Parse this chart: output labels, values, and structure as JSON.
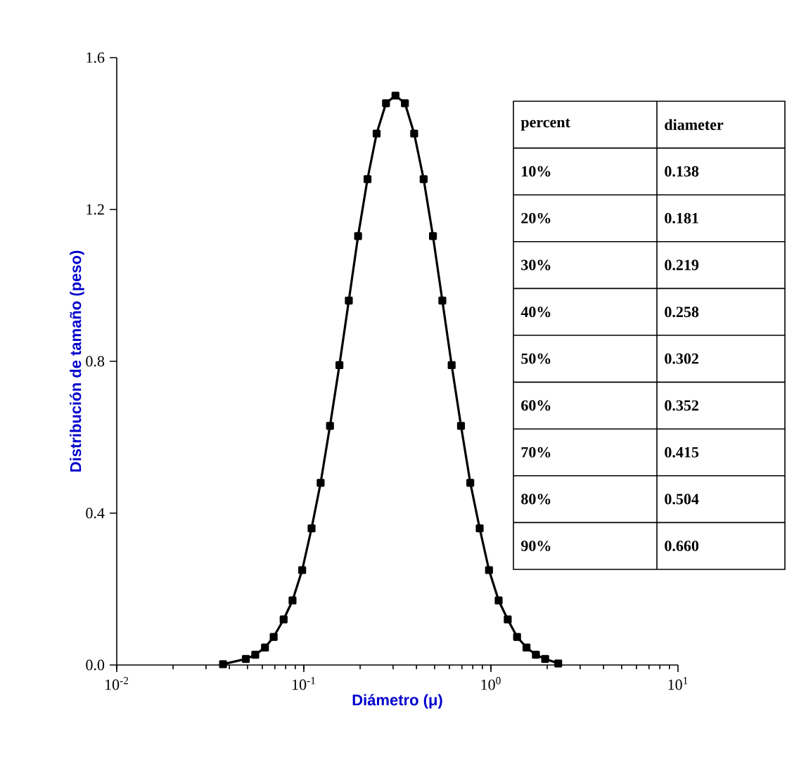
{
  "chart_data": {
    "type": "line",
    "xlabel": "Diámetro (μ)",
    "ylabel": "Distribución de tamaño (peso)",
    "log": "x",
    "marker": "square",
    "line_style": "solid",
    "grid": false,
    "xlim": [
      0.01,
      10
    ],
    "ylim": [
      0,
      1.6
    ],
    "xticks": [
      {
        "value": 0.01,
        "label": "10$^{-2}$"
      },
      {
        "value": 0.1,
        "label": "10$^{-1}$"
      },
      {
        "value": 1,
        "label": "10$^{0}$"
      },
      {
        "value": 10,
        "label": "10$^{1}$"
      }
    ],
    "yticks": [
      {
        "value": 0,
        "label": "0.0"
      },
      {
        "value": 0.4,
        "label": "0.4"
      },
      {
        "value": 0.8,
        "label": "0.8"
      },
      {
        "value": 1.2,
        "label": "1.2"
      },
      {
        "value": 1.6,
        "label": "1.6"
      }
    ],
    "series": [
      {
        "color": "#000000",
        "x": [
          0.037,
          0.049,
          0.055,
          0.062,
          0.069,
          0.078,
          0.087,
          0.098,
          0.11,
          0.123,
          0.138,
          0.155,
          0.174,
          0.195,
          0.219,
          0.245,
          0.275,
          0.309,
          0.347,
          0.389,
          0.437,
          0.49,
          0.55,
          0.617,
          0.692,
          0.776,
          0.871,
          0.977,
          1.1,
          1.23,
          1.38,
          1.55,
          1.74,
          1.95,
          2.29
        ],
        "values": [
          0.002,
          0.016,
          0.027,
          0.046,
          0.074,
          0.12,
          0.17,
          0.25,
          0.36,
          0.48,
          0.63,
          0.79,
          0.96,
          1.13,
          1.28,
          1.4,
          1.48,
          1.5,
          1.48,
          1.4,
          1.28,
          1.13,
          0.96,
          0.79,
          0.63,
          0.48,
          0.36,
          0.25,
          0.17,
          0.12,
          0.074,
          0.046,
          0.027,
          0.016,
          0.004
        ]
      }
    ],
    "annotations": [
      "percent",
      "diameter",
      "10%",
      "0.138",
      "20%",
      "0.181",
      "30%",
      "0.219",
      "40%",
      "0.258",
      "50%",
      "0.302",
      "60%",
      "0.352",
      "70%",
      "0.415",
      "80%",
      "0.504",
      "90%",
      "0.660"
    ]
  }
}
